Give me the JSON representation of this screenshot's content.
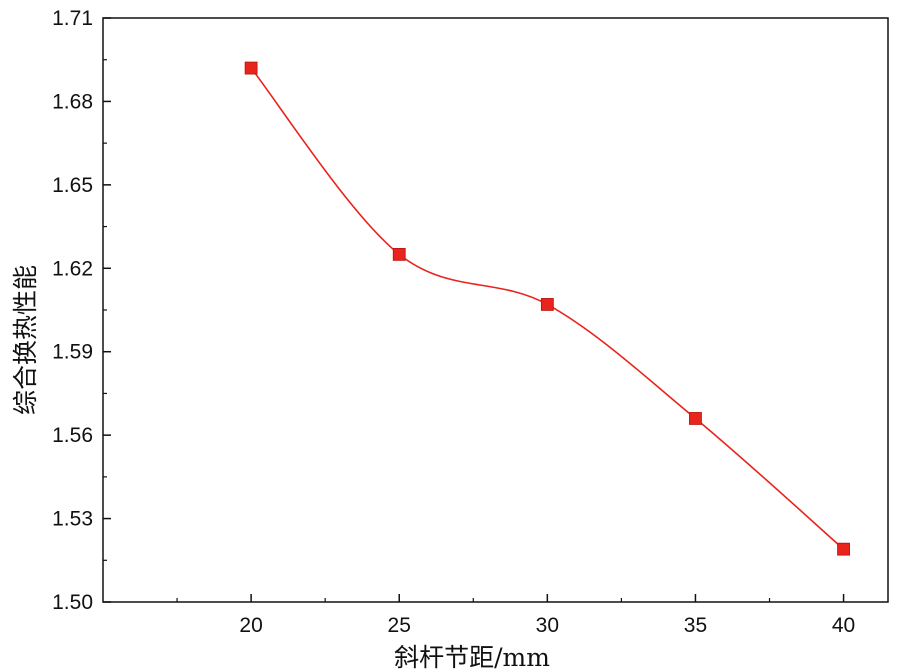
{
  "chart_data": {
    "type": "line",
    "title": "",
    "xlabel": "斜杆节距/mm",
    "ylabel": "综合换热性能",
    "x": [
      20,
      25,
      30,
      35,
      40
    ],
    "series": [
      {
        "values": [
          1.692,
          1.625,
          1.607,
          1.566,
          1.519
        ],
        "color": "#e8241c"
      }
    ],
    "xlim": [
      15,
      41.5
    ],
    "ylim": [
      1.5,
      1.71
    ],
    "xticks": [
      20,
      25,
      30,
      35,
      40
    ],
    "xtick_labels": [
      "20",
      "25",
      "30",
      "35",
      "40"
    ],
    "yticks": [
      1.5,
      1.53,
      1.56,
      1.59,
      1.62,
      1.65,
      1.68,
      1.71
    ],
    "ytick_labels": [
      "1.50",
      "1.53",
      "1.56",
      "1.59",
      "1.62",
      "1.65",
      "1.68",
      "1.71"
    ],
    "grid": false,
    "marker": "square",
    "curve": "smooth"
  }
}
